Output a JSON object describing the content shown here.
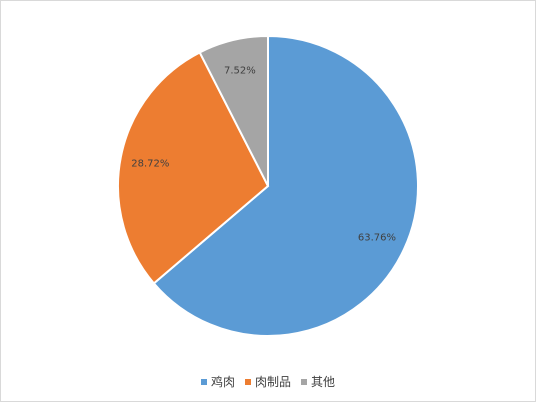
{
  "chart_data": {
    "type": "pie",
    "title": "",
    "slices": [
      {
        "name": "鸡肉",
        "value": 63.76,
        "label": "63.76%",
        "color": "#5b9bd5"
      },
      {
        "name": "肉制品",
        "value": 28.72,
        "label": "28.72%",
        "color": "#ed7d31"
      },
      {
        "name": "其他",
        "value": 7.52,
        "label": "7.52%",
        "color": "#a5a5a5"
      }
    ],
    "start_angle": "12 o'clock",
    "direction": "clockwise",
    "legend_position": "bottom"
  }
}
